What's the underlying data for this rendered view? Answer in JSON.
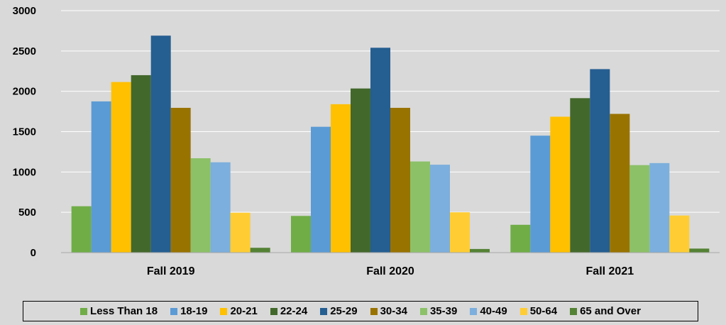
{
  "chart_data": {
    "type": "bar",
    "title": "",
    "xlabel": "",
    "ylabel": "",
    "ylim": [
      0,
      3000
    ],
    "yticks": [
      0,
      500,
      1000,
      1500,
      2000,
      2500,
      3000
    ],
    "grid": true,
    "legend_position": "bottom",
    "categories": [
      "Fall 2019",
      "Fall 2020",
      "Fall 2021"
    ],
    "series": [
      {
        "name": "Less Than 18",
        "color": "#70ad47",
        "values": [
          575,
          455,
          345
        ]
      },
      {
        "name": "18-19",
        "color": "#5b9bd5",
        "values": [
          1875,
          1560,
          1450
        ]
      },
      {
        "name": "20-21",
        "color": "#ffc000",
        "values": [
          2115,
          1840,
          1685
        ]
      },
      {
        "name": "22-24",
        "color": "#43682b",
        "values": [
          2200,
          2035,
          1915
        ]
      },
      {
        "name": "25-29",
        "color": "#255e91",
        "values": [
          2690,
          2540,
          2275
        ]
      },
      {
        "name": "30-34",
        "color": "#997300",
        "values": [
          1795,
          1795,
          1720
        ]
      },
      {
        "name": "35-39",
        "color": "#8cc168",
        "values": [
          1170,
          1130,
          1085
        ]
      },
      {
        "name": "40-49",
        "color": "#7cafdd",
        "values": [
          1120,
          1090,
          1110
        ]
      },
      {
        "name": "50-64",
        "color": "#ffcd33",
        "values": [
          495,
          500,
          460
        ]
      },
      {
        "name": "65 and Over",
        "color": "#548235",
        "values": [
          60,
          45,
          50
        ]
      }
    ]
  }
}
